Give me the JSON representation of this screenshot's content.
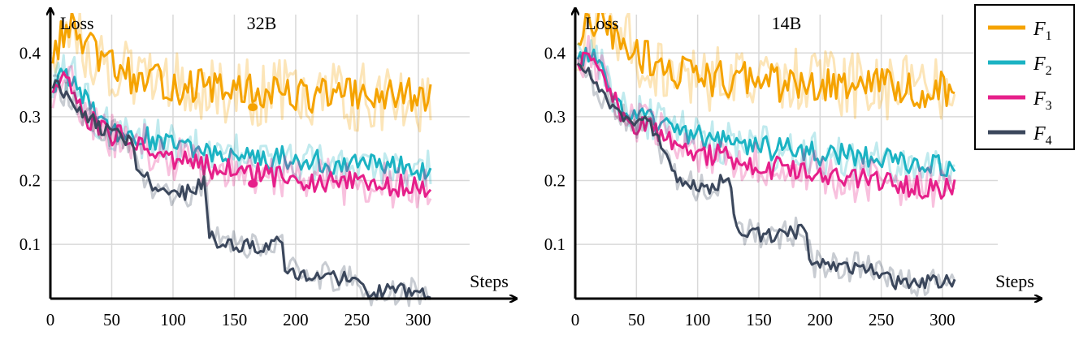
{
  "chart_data": [
    {
      "type": "line",
      "title": "32B",
      "xlabel": "Steps",
      "ylabel": "Loss",
      "xlim": [
        0,
        340
      ],
      "ylim": [
        0.015,
        0.45
      ],
      "x_ticks": [
        0,
        50,
        100,
        150,
        200,
        250,
        300
      ],
      "y_ticks": [
        0.1,
        0.2,
        0.3,
        0.4
      ],
      "x_tick_labels": [
        "0",
        "50",
        "100",
        "150",
        "200",
        "250",
        "300"
      ],
      "y_tick_labels": [
        "0.1",
        "0.2",
        "0.3",
        "0.4"
      ],
      "grid": true,
      "series": [
        {
          "name": "F1",
          "color": "#f5a300",
          "x": [
            0,
            10,
            20,
            30,
            40,
            50,
            60,
            70,
            80,
            90,
            100,
            110,
            120,
            130,
            140,
            150,
            160,
            170,
            180,
            190,
            200,
            210,
            220,
            230,
            240,
            250,
            260,
            270,
            280,
            290,
            300,
            310
          ],
          "values": [
            0.39,
            0.43,
            0.44,
            0.41,
            0.39,
            0.38,
            0.37,
            0.36,
            0.35,
            0.355,
            0.35,
            0.345,
            0.35,
            0.34,
            0.345,
            0.34,
            0.34,
            0.335,
            0.34,
            0.34,
            0.335,
            0.33,
            0.34,
            0.33,
            0.335,
            0.33,
            0.335,
            0.33,
            0.33,
            0.335,
            0.33,
            0.33
          ]
        },
        {
          "name": "F2",
          "color": "#1bb3c3",
          "x": [
            0,
            10,
            20,
            30,
            40,
            50,
            60,
            70,
            80,
            90,
            100,
            110,
            120,
            130,
            140,
            150,
            160,
            170,
            180,
            190,
            200,
            210,
            220,
            230,
            240,
            250,
            260,
            270,
            280,
            290,
            300,
            310
          ],
          "values": [
            0.34,
            0.37,
            0.36,
            0.32,
            0.29,
            0.28,
            0.275,
            0.27,
            0.265,
            0.26,
            0.255,
            0.25,
            0.25,
            0.245,
            0.24,
            0.24,
            0.24,
            0.235,
            0.235,
            0.24,
            0.23,
            0.23,
            0.23,
            0.225,
            0.23,
            0.225,
            0.225,
            0.22,
            0.22,
            0.225,
            0.22,
            0.215
          ]
        },
        {
          "name": "F3",
          "color": "#e61f8a",
          "x": [
            0,
            10,
            20,
            30,
            40,
            50,
            60,
            70,
            80,
            90,
            100,
            110,
            120,
            130,
            140,
            150,
            160,
            170,
            180,
            190,
            200,
            210,
            220,
            230,
            240,
            250,
            260,
            270,
            280,
            290,
            300,
            310
          ],
          "values": [
            0.34,
            0.36,
            0.34,
            0.3,
            0.28,
            0.27,
            0.27,
            0.265,
            0.25,
            0.24,
            0.235,
            0.23,
            0.23,
            0.22,
            0.22,
            0.215,
            0.21,
            0.21,
            0.205,
            0.21,
            0.205,
            0.2,
            0.2,
            0.2,
            0.195,
            0.2,
            0.195,
            0.195,
            0.19,
            0.195,
            0.19,
            0.19
          ]
        },
        {
          "name": "F4",
          "color": "#3b475c",
          "x": [
            0,
            10,
            20,
            30,
            40,
            50,
            60,
            65,
            70,
            80,
            90,
            100,
            110,
            120,
            126,
            130,
            140,
            150,
            160,
            170,
            180,
            188,
            192,
            200,
            210,
            220,
            230,
            240,
            250,
            255,
            260,
            270,
            280,
            290,
            300,
            310
          ],
          "values": [
            0.35,
            0.34,
            0.32,
            0.3,
            0.285,
            0.275,
            0.27,
            0.26,
            0.23,
            0.2,
            0.185,
            0.18,
            0.18,
            0.19,
            0.2,
            0.11,
            0.105,
            0.1,
            0.1,
            0.095,
            0.1,
            0.105,
            0.06,
            0.055,
            0.055,
            0.05,
            0.05,
            0.045,
            0.04,
            0.03,
            0.025,
            0.028,
            0.027,
            0.026,
            0.026,
            0.025
          ]
        }
      ],
      "annotations": [
        {
          "type": "dot",
          "x": 165,
          "y": 0.315,
          "color": "#f5a300"
        },
        {
          "type": "dot",
          "x": 165,
          "y": 0.195,
          "color": "#e61f8a"
        }
      ]
    },
    {
      "type": "line",
      "title": "14B",
      "xlabel": "Steps",
      "ylabel": "Loss",
      "xlim": [
        0,
        340
      ],
      "ylim": [
        0.015,
        0.45
      ],
      "x_ticks": [
        0,
        50,
        100,
        150,
        200,
        250,
        300
      ],
      "y_ticks": [
        0.1,
        0.2,
        0.3,
        0.4
      ],
      "x_tick_labels": [
        "0",
        "50",
        "100",
        "150",
        "200",
        "250",
        "300"
      ],
      "y_tick_labels": [
        "0.1",
        "0.2",
        "0.3",
        "0.4"
      ],
      "grid": true,
      "series": [
        {
          "name": "F1",
          "color": "#f5a300",
          "x": [
            0,
            10,
            20,
            30,
            40,
            50,
            60,
            70,
            80,
            90,
            100,
            110,
            120,
            130,
            140,
            150,
            160,
            170,
            180,
            190,
            200,
            210,
            220,
            230,
            240,
            250,
            260,
            270,
            280,
            290,
            300,
            310
          ],
          "values": [
            0.4,
            0.44,
            0.45,
            0.43,
            0.42,
            0.4,
            0.39,
            0.38,
            0.37,
            0.37,
            0.365,
            0.36,
            0.36,
            0.355,
            0.36,
            0.355,
            0.355,
            0.35,
            0.355,
            0.35,
            0.35,
            0.35,
            0.345,
            0.35,
            0.345,
            0.35,
            0.345,
            0.345,
            0.34,
            0.345,
            0.345,
            0.34
          ]
        },
        {
          "name": "F2",
          "color": "#1bb3c3",
          "x": [
            0,
            10,
            20,
            30,
            40,
            50,
            60,
            70,
            80,
            90,
            100,
            110,
            120,
            130,
            140,
            150,
            160,
            170,
            180,
            190,
            200,
            210,
            220,
            230,
            240,
            250,
            260,
            270,
            280,
            290,
            300,
            310
          ],
          "values": [
            0.38,
            0.4,
            0.38,
            0.34,
            0.31,
            0.3,
            0.295,
            0.285,
            0.28,
            0.275,
            0.27,
            0.265,
            0.26,
            0.26,
            0.255,
            0.255,
            0.25,
            0.25,
            0.245,
            0.245,
            0.24,
            0.24,
            0.24,
            0.235,
            0.235,
            0.235,
            0.23,
            0.23,
            0.23,
            0.23,
            0.225,
            0.225
          ]
        },
        {
          "name": "F3",
          "color": "#e61f8a",
          "x": [
            0,
            10,
            20,
            30,
            40,
            50,
            60,
            70,
            80,
            90,
            100,
            110,
            120,
            130,
            140,
            150,
            160,
            170,
            180,
            190,
            200,
            210,
            220,
            230,
            240,
            250,
            260,
            270,
            280,
            290,
            300,
            310
          ],
          "values": [
            0.37,
            0.4,
            0.37,
            0.33,
            0.3,
            0.29,
            0.285,
            0.275,
            0.26,
            0.25,
            0.245,
            0.24,
            0.24,
            0.23,
            0.23,
            0.225,
            0.22,
            0.22,
            0.215,
            0.215,
            0.21,
            0.205,
            0.205,
            0.2,
            0.2,
            0.195,
            0.195,
            0.19,
            0.19,
            0.19,
            0.185,
            0.185
          ]
        },
        {
          "name": "F4",
          "color": "#3b475c",
          "x": [
            0,
            10,
            20,
            30,
            40,
            50,
            60,
            65,
            70,
            80,
            90,
            100,
            110,
            120,
            126,
            130,
            140,
            150,
            160,
            170,
            180,
            188,
            192,
            200,
            210,
            220,
            230,
            240,
            250,
            255,
            260,
            270,
            280,
            290,
            300,
            310
          ],
          "values": [
            0.38,
            0.37,
            0.34,
            0.32,
            0.3,
            0.29,
            0.29,
            0.28,
            0.25,
            0.21,
            0.195,
            0.19,
            0.19,
            0.2,
            0.21,
            0.13,
            0.12,
            0.115,
            0.115,
            0.115,
            0.12,
            0.125,
            0.075,
            0.065,
            0.065,
            0.065,
            0.065,
            0.06,
            0.055,
            0.045,
            0.04,
            0.04,
            0.04,
            0.04,
            0.04,
            0.04
          ]
        }
      ],
      "annotations": []
    }
  ],
  "legend": {
    "position": "top-right",
    "entries": [
      {
        "base": "F",
        "sub": "1",
        "color": "#f5a300"
      },
      {
        "base": "F",
        "sub": "2",
        "color": "#1bb3c3"
      },
      {
        "base": "F",
        "sub": "3",
        "color": "#e61f8a"
      },
      {
        "base": "F",
        "sub": "4",
        "color": "#3b475c"
      }
    ]
  }
}
